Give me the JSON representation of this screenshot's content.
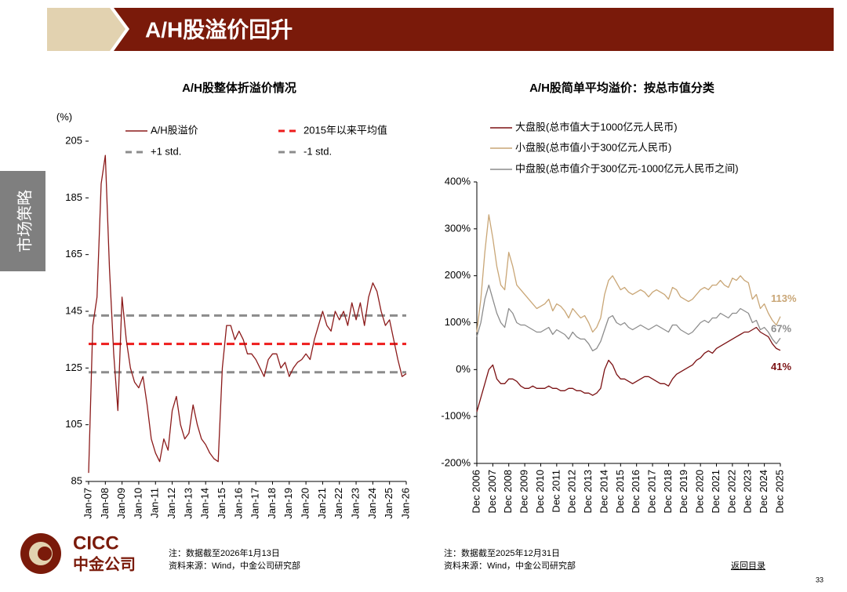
{
  "header": {
    "title": "A/H股溢价回升",
    "section": "市场策略"
  },
  "chart_data": [
    {
      "type": "line",
      "title": "A/H股整体折溢价情况",
      "y_label": "(%)",
      "x": [
        "Jan-07",
        "Apr-07",
        "Jul-07",
        "Oct-07",
        "Jan-08",
        "Apr-08",
        "Jul-08",
        "Oct-08",
        "Jan-09",
        "Apr-09",
        "Jul-09",
        "Oct-09",
        "Jan-10",
        "Apr-10",
        "Jul-10",
        "Oct-10",
        "Jan-11",
        "Apr-11",
        "Jul-11",
        "Oct-11",
        "Jan-12",
        "Apr-12",
        "Jul-12",
        "Oct-12",
        "Jan-13",
        "Apr-13",
        "Jul-13",
        "Oct-13",
        "Jan-14",
        "Apr-14",
        "Jul-14",
        "Oct-14",
        "Jan-15",
        "Apr-15",
        "Jul-15",
        "Oct-15",
        "Jan-16",
        "Apr-16",
        "Jul-16",
        "Oct-16",
        "Jan-17",
        "Apr-17",
        "Jul-17",
        "Oct-17",
        "Jan-18",
        "Apr-18",
        "Jul-18",
        "Oct-18",
        "Jan-19",
        "Apr-19",
        "Jul-19",
        "Oct-19",
        "Jan-20",
        "Apr-20",
        "Jul-20",
        "Oct-20",
        "Jan-21",
        "Apr-21",
        "Jul-21",
        "Oct-21",
        "Jan-22",
        "Apr-22",
        "Jul-22",
        "Oct-22",
        "Jan-23",
        "Apr-23",
        "Jul-23",
        "Oct-23",
        "Jan-24",
        "Apr-24",
        "Jul-24",
        "Oct-24",
        "Jan-25",
        "Apr-25",
        "Jul-25",
        "Oct-25",
        "Jan-26"
      ],
      "xticks": [
        "Jan-07",
        "Jan-08",
        "Jan-09",
        "Jan-10",
        "Jan-11",
        "Jan-12",
        "Jan-13",
        "Jan-14",
        "Jan-15",
        "Jan-16",
        "Jan-17",
        "Jan-18",
        "Jan-19",
        "Jan-20",
        "Jan-21",
        "Jan-22",
        "Jan-23",
        "Jan-24",
        "Jan-25",
        "Jan-26"
      ],
      "ylim": [
        85,
        205
      ],
      "yticks": [
        85,
        105,
        125,
        145,
        165,
        185,
        205
      ],
      "series": [
        {
          "name": "A/H股溢价",
          "color": "#8b1a1a",
          "values": [
            88,
            140,
            150,
            190,
            200,
            160,
            130,
            110,
            150,
            135,
            125,
            120,
            118,
            122,
            112,
            100,
            95,
            92,
            100,
            96,
            110,
            115,
            105,
            100,
            102,
            112,
            105,
            100,
            98,
            95,
            93,
            92,
            125,
            140,
            140,
            135,
            138,
            135,
            130,
            130,
            128,
            125,
            122,
            128,
            130,
            130,
            125,
            127,
            122,
            125,
            127,
            128,
            130,
            128,
            135,
            140,
            145,
            140,
            138,
            145,
            142,
            145,
            140,
            148,
            142,
            148,
            140,
            150,
            155,
            152,
            145,
            140,
            142,
            135,
            128,
            122,
            123
          ]
        }
      ],
      "reference_lines": [
        {
          "name": "2015年以来平均值",
          "value": 133.5,
          "color": "#ee1c1c"
        },
        {
          "name": "+1 std.",
          "value": 143.5,
          "color": "#8c8c8c"
        },
        {
          "name": "-1 std.",
          "value": 123.5,
          "color": "#8c8c8c"
        }
      ],
      "note": "注：数据截至2026年1月13日",
      "source": "资料来源：Wind，中金公司研究部"
    },
    {
      "type": "line",
      "title": "A/H股简单平均溢价：按总市值分类",
      "x": [
        "Dec 2006",
        "Mar 2007",
        "Jun 2007",
        "Sep 2007",
        "Dec 2007",
        "Mar 2008",
        "Jun 2008",
        "Sep 2008",
        "Dec 2008",
        "Mar 2009",
        "Jun 2009",
        "Sep 2009",
        "Dec 2009",
        "Mar 2010",
        "Jun 2010",
        "Sep 2010",
        "Dec 2010",
        "Mar 2011",
        "Jun 2011",
        "Sep 2011",
        "Dec 2011",
        "Mar 2012",
        "Jun 2012",
        "Sep 2012",
        "Dec 2012",
        "Mar 2013",
        "Jun 2013",
        "Sep 2013",
        "Dec 2013",
        "Mar 2014",
        "Jun 2014",
        "Sep 2014",
        "Dec 2014",
        "Mar 2015",
        "Jun 2015",
        "Sep 2015",
        "Dec 2015",
        "Mar 2016",
        "Jun 2016",
        "Sep 2016",
        "Dec 2016",
        "Mar 2017",
        "Jun 2017",
        "Sep 2017",
        "Dec 2017",
        "Mar 2018",
        "Jun 2018",
        "Sep 2018",
        "Dec 2018",
        "Mar 2019",
        "Jun 2019",
        "Sep 2019",
        "Dec 2019",
        "Mar 2020",
        "Jun 2020",
        "Sep 2020",
        "Dec 2020",
        "Mar 2021",
        "Jun 2021",
        "Sep 2021",
        "Dec 2021",
        "Mar 2022",
        "Jun 2022",
        "Sep 2022",
        "Dec 2022",
        "Mar 2023",
        "Jun 2023",
        "Sep 2023",
        "Dec 2023",
        "Mar 2024",
        "Jun 2024",
        "Sep 2024",
        "Dec 2024",
        "Mar 2025",
        "Jun 2025",
        "Sep 2025",
        "Dec 2025"
      ],
      "xticks": [
        "Dec 2006",
        "Dec 2007",
        "Dec 2008",
        "Dec 2009",
        "Dec 2010",
        "Dec 2011",
        "Dec 2012",
        "Dec 2013",
        "Dec 2014",
        "Dec 2015",
        "Dec 2016",
        "Dec 2017",
        "Dec 2018",
        "Dec 2019",
        "Dec 2020",
        "Dec 2021",
        "Dec 2022",
        "Dec 2023",
        "Dec 2024",
        "Dec 2025"
      ],
      "ylim": [
        -200,
        400
      ],
      "yticks": [
        {
          "value": -200,
          "label": "-200%"
        },
        {
          "value": -100,
          "label": "-100%"
        },
        {
          "value": 0,
          "label": "0%"
        },
        {
          "value": 100,
          "label": "100%"
        },
        {
          "value": 200,
          "label": "200%"
        },
        {
          "value": 300,
          "label": "300%"
        },
        {
          "value": 400,
          "label": "400%"
        }
      ],
      "series": [
        {
          "name": "大盘股(总市值大于1000亿元人民币)",
          "color": "#7b1113",
          "end_label": "41%",
          "values": [
            -90,
            -60,
            -30,
            0,
            10,
            -20,
            -30,
            -30,
            -20,
            -20,
            -25,
            -35,
            -40,
            -40,
            -35,
            -40,
            -40,
            -40,
            -35,
            -40,
            -40,
            -45,
            -45,
            -40,
            -40,
            -45,
            -45,
            -50,
            -50,
            -55,
            -50,
            -40,
            0,
            20,
            10,
            -10,
            -20,
            -20,
            -25,
            -30,
            -25,
            -20,
            -15,
            -15,
            -20,
            -25,
            -30,
            -30,
            -35,
            -20,
            -10,
            -5,
            0,
            5,
            10,
            20,
            25,
            35,
            40,
            35,
            45,
            50,
            55,
            60,
            65,
            70,
            75,
            80,
            80,
            85,
            90,
            80,
            75,
            70,
            55,
            45,
            41
          ]
        },
        {
          "name": "小盘股(总市值小于300亿元人民币)",
          "color": "#c9a676",
          "end_label": "113%",
          "values": [
            80,
            150,
            250,
            330,
            280,
            220,
            180,
            170,
            250,
            220,
            180,
            170,
            160,
            150,
            140,
            130,
            135,
            140,
            150,
            125,
            140,
            135,
            125,
            110,
            130,
            120,
            110,
            115,
            100,
            80,
            90,
            110,
            160,
            190,
            200,
            185,
            170,
            175,
            165,
            160,
            165,
            170,
            165,
            155,
            165,
            170,
            165,
            160,
            150,
            175,
            170,
            155,
            150,
            145,
            150,
            160,
            170,
            175,
            170,
            180,
            180,
            190,
            180,
            175,
            195,
            190,
            200,
            190,
            185,
            150,
            160,
            130,
            140,
            120,
            105,
            95,
            113
          ]
        },
        {
          "name": "中盘股(总市值介于300亿元-1000亿元人民币之间)",
          "color": "#8c8c8c",
          "end_label": "67%",
          "values": [
            70,
            100,
            150,
            180,
            150,
            120,
            100,
            90,
            130,
            120,
            100,
            95,
            95,
            90,
            85,
            80,
            80,
            85,
            90,
            75,
            85,
            80,
            75,
            65,
            80,
            70,
            65,
            65,
            55,
            40,
            45,
            60,
            85,
            110,
            115,
            100,
            95,
            100,
            90,
            85,
            90,
            95,
            90,
            85,
            90,
            95,
            90,
            85,
            80,
            95,
            95,
            85,
            80,
            75,
            80,
            90,
            100,
            105,
            100,
            110,
            110,
            120,
            115,
            110,
            120,
            120,
            130,
            125,
            120,
            100,
            105,
            85,
            90,
            80,
            65,
            55,
            67
          ]
        }
      ],
      "note": "注：数据截至2025年12月31日",
      "source": "资料来源：Wind，中金公司研究部"
    }
  ],
  "footer": {
    "logo_en": "CICC",
    "logo_cn": "中金公司",
    "link": "返回目录",
    "page": "33"
  }
}
